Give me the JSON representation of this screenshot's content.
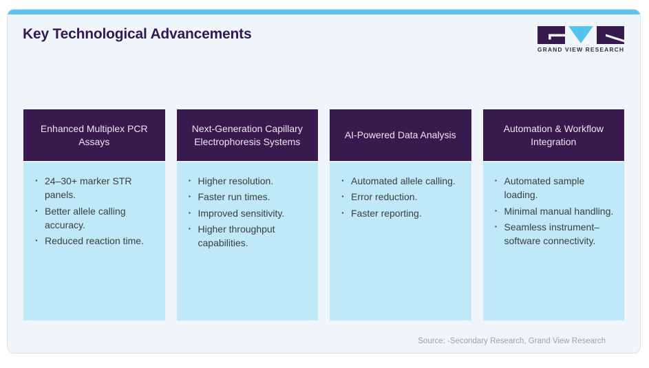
{
  "page": {
    "title": "Key Technological Advancements",
    "source_note": "Source: -Secondary Research, Grand View Research"
  },
  "logo": {
    "caption": "GRAND VIEW RESEARCH"
  },
  "colors": {
    "accent_bar_blue": "#5cc5ee",
    "header_purple": "#381a4f",
    "body_light_blue": "#bfe8f8",
    "title_purple": "#301a54",
    "card_background": "#f0f5f9",
    "body_text": "#3d3d40",
    "source_text": "#9aa3ad",
    "logo_triangle_blue": "#56c3ec"
  },
  "columns": [
    {
      "header": "Enhanced Multiplex PCR Assays",
      "bullets": [
        "24–30+ marker STR panels.",
        "Better allele calling accuracy.",
        "Reduced reaction time."
      ]
    },
    {
      "header": "Next-Generation Capillary Electrophoresis Systems",
      "bullets": [
        "Higher resolution.",
        "Faster run times.",
        "Improved sensitivity.",
        "Higher throughput capabilities."
      ]
    },
    {
      "header": "AI-Powered Data Analysis",
      "bullets": [
        "Automated allele calling.",
        "Error reduction.",
        "Faster reporting."
      ]
    },
    {
      "header": "Automation & Workflow Integration",
      "bullets": [
        "Automated sample loading.",
        "Minimal manual handling.",
        "Seamless instrument–software connectivity."
      ]
    }
  ]
}
